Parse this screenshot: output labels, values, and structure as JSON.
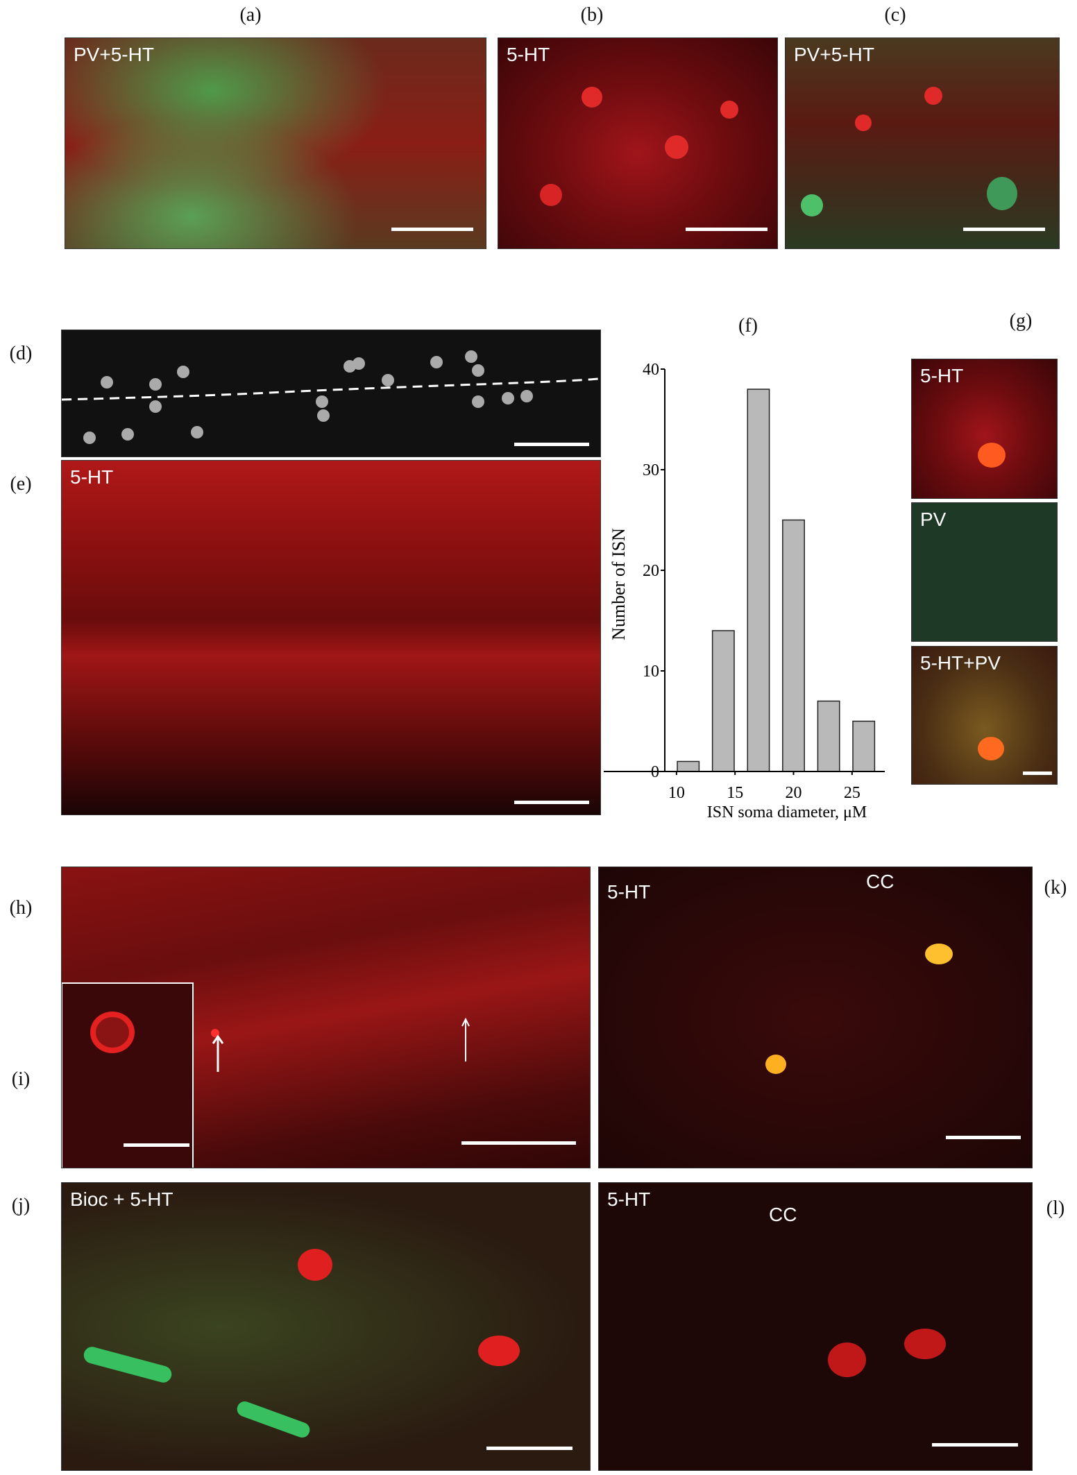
{
  "panel_letters": {
    "a": "(a)",
    "b": "(b)",
    "c": "(c)",
    "d": "(d)",
    "e": "(e)",
    "f": "(f)",
    "g": "(g)",
    "h": "(h)",
    "i": "(i)",
    "j": "(j)",
    "k": "(k)",
    "l": "(l)"
  },
  "image_labels": {
    "a": "PV+5-HT",
    "b": "5-HT",
    "c": "PV+5-HT",
    "e": "5-HT",
    "g1": "5-HT",
    "g2": "PV",
    "g3": "5-HT+PV",
    "j": "Bioc + 5-HT",
    "k": "5-HT",
    "k_cc": "CC",
    "l": "5-HT",
    "l_cc": "CC"
  },
  "colors": {
    "red_stain": "#c8141a",
    "green_stain": "#3fae5a",
    "bar_fill": "#b9b9b9"
  },
  "chart_data": {
    "type": "bar",
    "title": "",
    "xlabel": "ISN soma diameter, μM",
    "ylabel": "Number of ISN",
    "x": [
      11,
      14,
      17,
      20,
      23,
      26
    ],
    "values": [
      1,
      14,
      38,
      25,
      7,
      5
    ],
    "xticks": [
      "10",
      "15",
      "20",
      "25"
    ],
    "yticks": [
      "0",
      "10",
      "20",
      "30",
      "40"
    ],
    "xlim": [
      9,
      27.5
    ],
    "ylim": [
      0,
      40
    ],
    "grid": false
  }
}
